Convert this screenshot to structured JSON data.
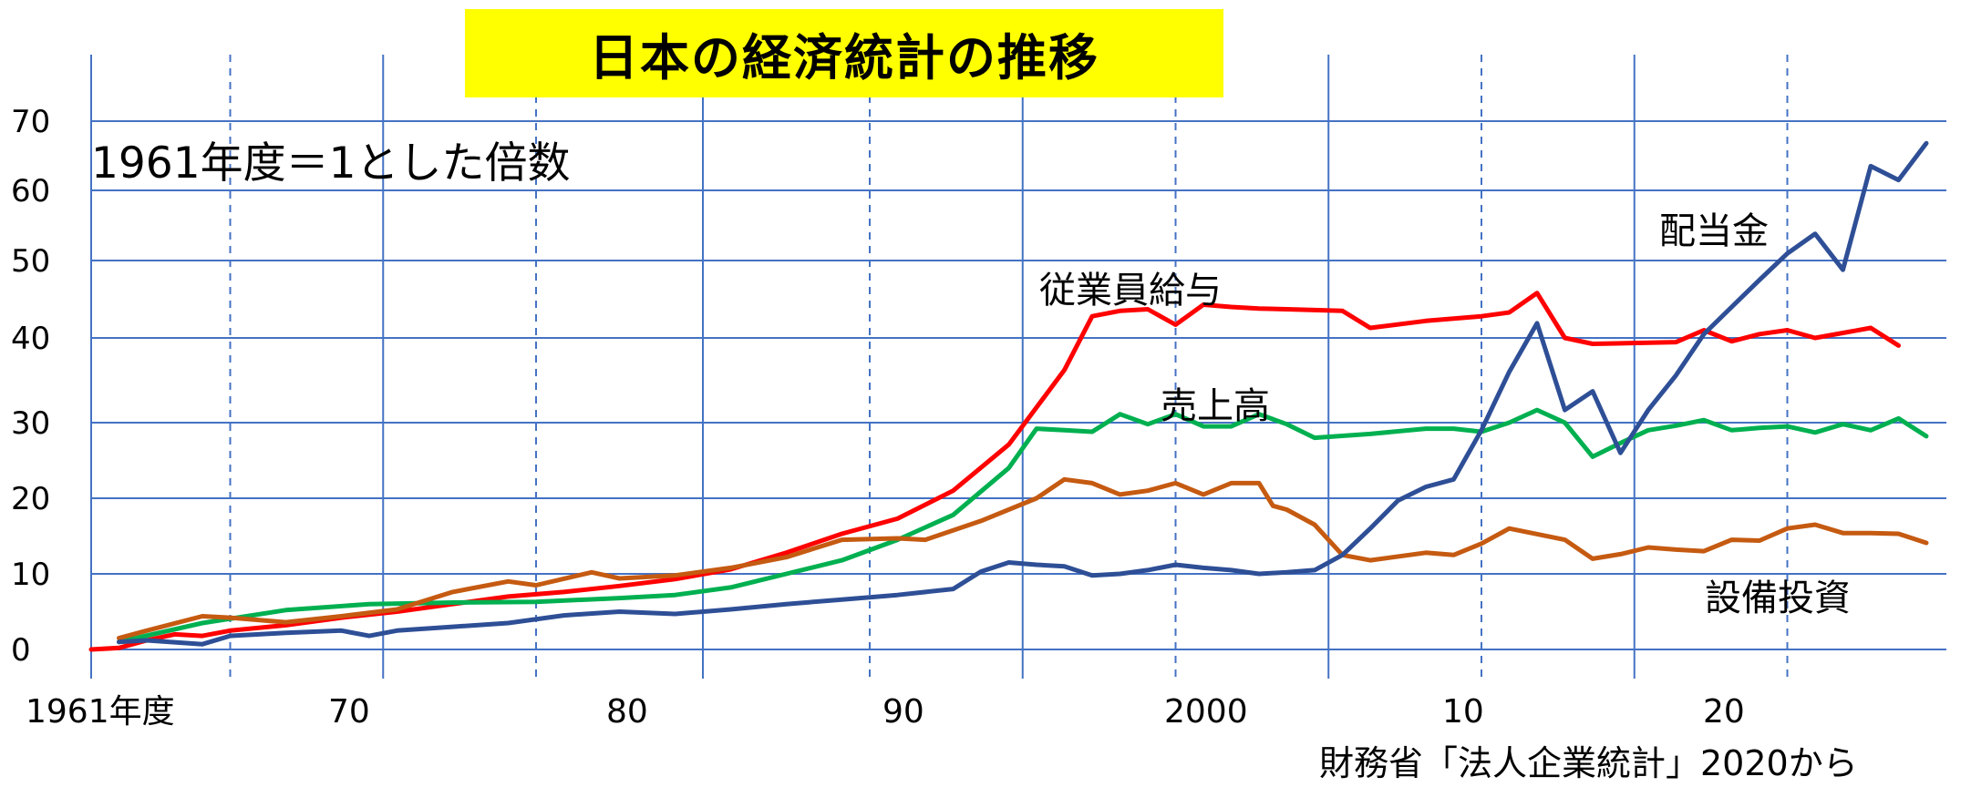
{
  "chart_data": {
    "type": "line",
    "title": "日本の経済統計の推移",
    "subtitle": "1961年度＝1とした倍数",
    "source": "財務省「法人企業統計」2020から",
    "xlabel": "",
    "ylabel": "",
    "yticks": [
      0,
      10,
      20,
      30,
      40,
      50,
      60,
      70
    ],
    "xtick_labels": [
      {
        "x": 1961,
        "label": "1961年度"
      },
      {
        "x": 1970,
        "label": "70"
      },
      {
        "x": 1980,
        "label": "80"
      },
      {
        "x": 1990,
        "label": "90"
      },
      {
        "x": 2000,
        "label": "2000"
      },
      {
        "x": 2010,
        "label": "10"
      },
      {
        "x": 2020,
        "label": "20"
      }
    ],
    "series": [
      {
        "name": "従業員給与",
        "color": "#ff0000",
        "points": [
          [
            1961,
            0
          ],
          [
            1962,
            0.2
          ],
          [
            1963,
            1.2
          ],
          [
            1964,
            2
          ],
          [
            1965,
            1.8
          ],
          [
            1966,
            2.5
          ],
          [
            1968,
            3.2
          ],
          [
            1970,
            4.2
          ],
          [
            1972,
            5
          ],
          [
            1974,
            6
          ],
          [
            1976,
            7
          ],
          [
            1978,
            7.6
          ],
          [
            1980,
            8.4
          ],
          [
            1982,
            9.3
          ],
          [
            1984,
            10.6
          ],
          [
            1986,
            12.8
          ],
          [
            1988,
            15.3
          ],
          [
            1990,
            17.3
          ],
          [
            1992,
            21
          ],
          [
            1994,
            27.1
          ],
          [
            1996,
            36.2
          ],
          [
            1997,
            42.8
          ],
          [
            1998,
            43.5
          ],
          [
            1999,
            43.7
          ],
          [
            2000,
            41.7
          ],
          [
            2001,
            44.3
          ],
          [
            2002,
            44
          ],
          [
            2003,
            43.8
          ],
          [
            2004,
            43.7
          ],
          [
            2005,
            43.6
          ],
          [
            2006,
            43.5
          ],
          [
            2007,
            41.3
          ],
          [
            2009,
            42.2
          ],
          [
            2011,
            42.8
          ],
          [
            2012,
            43.3
          ],
          [
            2013,
            45.8
          ],
          [
            2014,
            40
          ],
          [
            2015,
            39.3
          ],
          [
            2018,
            39.5
          ],
          [
            2019,
            41
          ],
          [
            2020,
            39.6
          ],
          [
            2021,
            40.5
          ],
          [
            2022,
            41
          ],
          [
            2023,
            40
          ],
          [
            2025,
            41.3
          ],
          [
            2026,
            39.1
          ]
        ]
      },
      {
        "name": "売上高",
        "color": "#00b050",
        "points": [
          [
            1962,
            1
          ],
          [
            1965,
            3.5
          ],
          [
            1968,
            5.2
          ],
          [
            1971,
            6
          ],
          [
            1974,
            6.2
          ],
          [
            1977,
            6.3
          ],
          [
            1980,
            6.8
          ],
          [
            1982,
            7.2
          ],
          [
            1984,
            8.2
          ],
          [
            1986,
            10
          ],
          [
            1988,
            11.8
          ],
          [
            1990,
            14.5
          ],
          [
            1992,
            17.8
          ],
          [
            1994,
            24
          ],
          [
            1995,
            29.2
          ],
          [
            1996,
            29
          ],
          [
            1997,
            28.8
          ],
          [
            1998,
            31
          ],
          [
            1999,
            29.8
          ],
          [
            2000,
            31
          ],
          [
            2001,
            29.5
          ],
          [
            2002,
            29.5
          ],
          [
            2003,
            31
          ],
          [
            2004,
            29.8
          ],
          [
            2005,
            28
          ],
          [
            2007,
            28.5
          ],
          [
            2009,
            29.2
          ],
          [
            2010,
            29.2
          ],
          [
            2011,
            28.8
          ],
          [
            2012,
            30
          ],
          [
            2013,
            31.5
          ],
          [
            2014,
            30
          ],
          [
            2015,
            25.5
          ],
          [
            2016,
            27.3
          ],
          [
            2017,
            29
          ],
          [
            2018,
            29.6
          ],
          [
            2019,
            30.3
          ],
          [
            2020,
            29
          ],
          [
            2021,
            29.3
          ],
          [
            2022,
            29.5
          ],
          [
            2023,
            28.7
          ],
          [
            2024,
            29.8
          ],
          [
            2025,
            29
          ],
          [
            2026,
            30.5
          ],
          [
            2027,
            28.2
          ]
        ]
      },
      {
        "name": "設備投資",
        "color": "#c55a11",
        "points": [
          [
            1962,
            1.5
          ],
          [
            1963,
            2.5
          ],
          [
            1965,
            4.4
          ],
          [
            1966,
            4.2
          ],
          [
            1968,
            3.6
          ],
          [
            1970,
            4.4
          ],
          [
            1972,
            5.3
          ],
          [
            1974,
            7.6
          ],
          [
            1976,
            9
          ],
          [
            1977,
            8.5
          ],
          [
            1979,
            10.2
          ],
          [
            1980,
            9.4
          ],
          [
            1982,
            9.8
          ],
          [
            1984,
            10.8
          ],
          [
            1986,
            12.2
          ],
          [
            1988,
            14.5
          ],
          [
            1990,
            14.7
          ],
          [
            1991,
            14.5
          ],
          [
            1993,
            17
          ],
          [
            1995,
            20
          ],
          [
            1996,
            22.5
          ],
          [
            1997,
            22
          ],
          [
            1998,
            20.5
          ],
          [
            1999,
            21
          ],
          [
            2000,
            22
          ],
          [
            2001,
            20.5
          ],
          [
            2002,
            22
          ],
          [
            2003,
            22
          ],
          [
            2003.5,
            19
          ],
          [
            2004,
            18.5
          ],
          [
            2005,
            16.5
          ],
          [
            2006,
            12.5
          ],
          [
            2007,
            11.8
          ],
          [
            2009,
            12.8
          ],
          [
            2010,
            12.5
          ],
          [
            2011,
            14
          ],
          [
            2012,
            16
          ],
          [
            2014,
            14.5
          ],
          [
            2015,
            12
          ],
          [
            2016,
            12.6
          ],
          [
            2017,
            13.5
          ],
          [
            2018,
            13.2
          ],
          [
            2019,
            13
          ],
          [
            2020,
            14.5
          ],
          [
            2021,
            14.4
          ],
          [
            2022,
            16
          ],
          [
            2023,
            16.5
          ],
          [
            2024,
            15.4
          ],
          [
            2025,
            15.4
          ],
          [
            2026,
            15.3
          ],
          [
            2027,
            14.1
          ]
        ]
      },
      {
        "name": "配当金",
        "color": "#2e4f96",
        "points": [
          [
            1962,
            1
          ],
          [
            1963,
            1.2
          ],
          [
            1965,
            0.7
          ],
          [
            1966,
            1.8
          ],
          [
            1968,
            2.2
          ],
          [
            1970,
            2.5
          ],
          [
            1971,
            1.8
          ],
          [
            1972,
            2.5
          ],
          [
            1974,
            3
          ],
          [
            1976,
            3.5
          ],
          [
            1978,
            4.5
          ],
          [
            1980,
            5
          ],
          [
            1982,
            4.7
          ],
          [
            1984,
            5.3
          ],
          [
            1986,
            6
          ],
          [
            1988,
            6.6
          ],
          [
            1990,
            7.2
          ],
          [
            1992,
            8
          ],
          [
            1993,
            10.3
          ],
          [
            1994,
            11.5
          ],
          [
            1995,
            11.2
          ],
          [
            1996,
            11
          ],
          [
            1997,
            9.8
          ],
          [
            1998,
            10
          ],
          [
            1999,
            10.5
          ],
          [
            2000,
            11.2
          ],
          [
            2001,
            10.8
          ],
          [
            2002,
            10.5
          ],
          [
            2003,
            10
          ],
          [
            2004,
            10.2
          ],
          [
            2005,
            10.5
          ],
          [
            2006,
            12.5
          ],
          [
            2007,
            16
          ],
          [
            2008,
            19.7
          ],
          [
            2009,
            21.5
          ],
          [
            2010,
            22.5
          ],
          [
            2011,
            29
          ],
          [
            2012,
            36
          ],
          [
            2013,
            41.9
          ],
          [
            2014,
            31.5
          ],
          [
            2015,
            33.7
          ],
          [
            2016,
            26
          ],
          [
            2017,
            31.5
          ],
          [
            2018,
            35.6
          ],
          [
            2019,
            40.5
          ],
          [
            2020,
            44
          ],
          [
            2021,
            47.5
          ],
          [
            2022,
            51
          ],
          [
            2023,
            53.8
          ],
          [
            2024,
            48.8
          ],
          [
            2025,
            63.5
          ],
          [
            2026,
            61.5
          ],
          [
            2027,
            66.8
          ]
        ]
      }
    ]
  },
  "series_labels": {
    "salary": "従業員給与",
    "sales": "売上高",
    "dividends": "配当金",
    "capex": "設備投資"
  }
}
